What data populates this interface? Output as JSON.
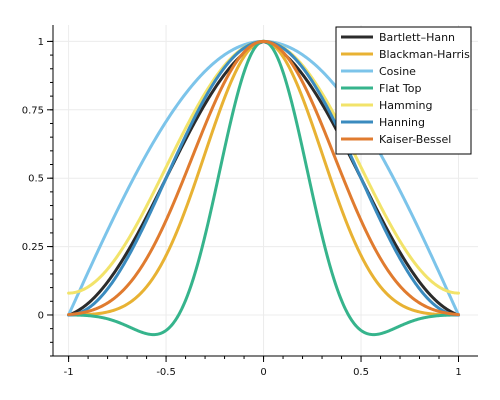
{
  "chart_data": {
    "type": "line",
    "title": "",
    "xlabel": "",
    "ylabel": "",
    "xlim": [
      -1.08,
      1.1
    ],
    "ylim": [
      -0.15,
      1.06
    ],
    "grid": true,
    "legend_position": "top-right",
    "x_ticks": [
      -1,
      -0.5,
      0,
      0.5,
      1
    ],
    "x_tick_labels": [
      "-1",
      "-0.5",
      "0",
      "0.5",
      "1"
    ],
    "y_ticks": [
      0,
      0.25,
      0.5,
      0.75,
      1
    ],
    "y_tick_labels": [
      "0",
      "0.25",
      "0.5",
      "0.75",
      "1"
    ],
    "x_domain": [
      -1,
      1
    ],
    "series": [
      {
        "name": "Bartlett–Hann",
        "color": "#2b2b2b",
        "window": "bartlett-hann"
      },
      {
        "name": "Blackman-Harris",
        "color": "#e8b233",
        "window": "blackman-harris"
      },
      {
        "name": "Cosine",
        "color": "#7cc4ea",
        "window": "cosine"
      },
      {
        "name": "Flat Top",
        "color": "#36b48c",
        "window": "flat-top"
      },
      {
        "name": "Hamming",
        "color": "#f2e36a",
        "window": "hamming"
      },
      {
        "name": "Hanning",
        "color": "#3a8bbf",
        "window": "hanning"
      },
      {
        "name": "Kaiser-Bessel",
        "color": "#e07b2f",
        "window": "kaiser-bessel"
      }
    ]
  }
}
